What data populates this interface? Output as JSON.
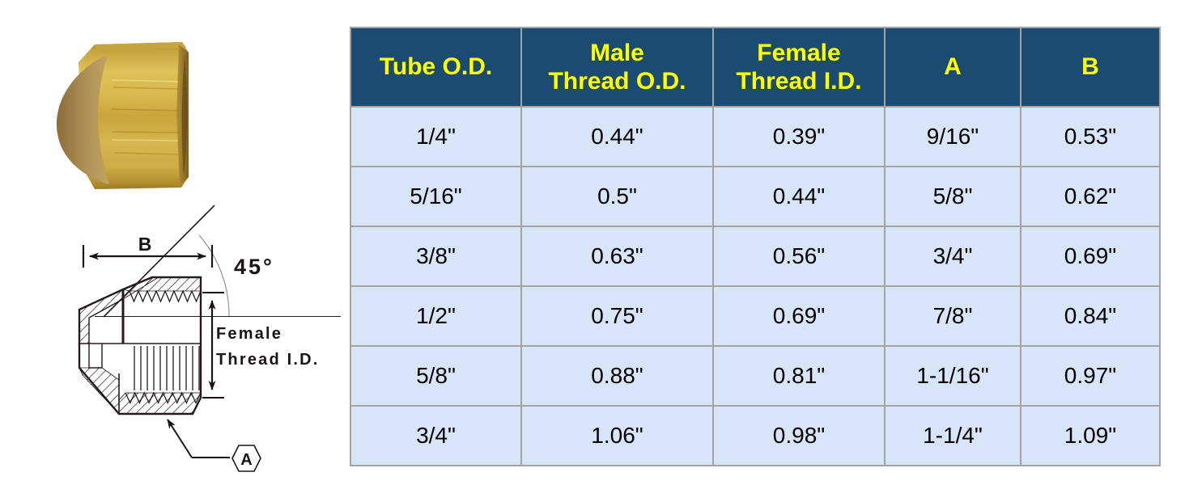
{
  "photo": {
    "name": "brass flare cap nut"
  },
  "diagram": {
    "dim_b": "B",
    "angle": "45°",
    "female_line1": "Female",
    "female_line2": "Thread I.D.",
    "hex_flats": "A"
  },
  "table": {
    "columns": [
      [
        "Tube O.D."
      ],
      [
        "Male",
        "Thread O.D."
      ],
      [
        "Female",
        "Thread I.D."
      ],
      [
        "A"
      ],
      [
        "B"
      ]
    ],
    "rows": [
      [
        "1/4\"",
        "0.44\"",
        "0.39\"",
        "9/16\"",
        "0.53\""
      ],
      [
        "5/16\"",
        "0.5\"",
        "0.44\"",
        "5/8\"",
        "0.62\""
      ],
      [
        "3/8\"",
        "0.63\"",
        "0.56\"",
        "3/4\"",
        "0.69\""
      ],
      [
        "1/2\"",
        "0.75\"",
        "0.69\"",
        "7/8\"",
        "0.84\""
      ],
      [
        "5/8\"",
        "0.88\"",
        "0.81\"",
        "1-1/16\"",
        "0.97\""
      ],
      [
        "3/4\"",
        "1.06\"",
        "0.98\"",
        "1-1/4\"",
        "1.09\""
      ]
    ],
    "colors": {
      "header_bg": "#1B4B70",
      "header_text": "#FFFF00",
      "row_bg": "#D8E4F8",
      "grid": "#A3A3A3",
      "outer_border": "#8E8E8E",
      "body_text": "#000000"
    }
  },
  "chart_data": {
    "type": "table",
    "title": "Flare cap nut dimensions",
    "columns": [
      "Tube O.D.",
      "Male Thread O.D.",
      "Female Thread I.D.",
      "A",
      "B"
    ],
    "rows": [
      [
        "1/4\"",
        "0.44\"",
        "0.39\"",
        "9/16\"",
        "0.53\""
      ],
      [
        "5/16\"",
        "0.5\"",
        "0.44\"",
        "5/8\"",
        "0.62\""
      ],
      [
        "3/8\"",
        "0.63\"",
        "0.56\"",
        "3/4\"",
        "0.69\""
      ],
      [
        "1/2\"",
        "0.75\"",
        "0.69\"",
        "7/8\"",
        "0.84\""
      ],
      [
        "5/8\"",
        "0.88\"",
        "0.81\"",
        "1-1/16\"",
        "0.97\""
      ],
      [
        "3/4\"",
        "1.06\"",
        "0.98\"",
        "1-1/4\"",
        "1.09\""
      ]
    ]
  }
}
